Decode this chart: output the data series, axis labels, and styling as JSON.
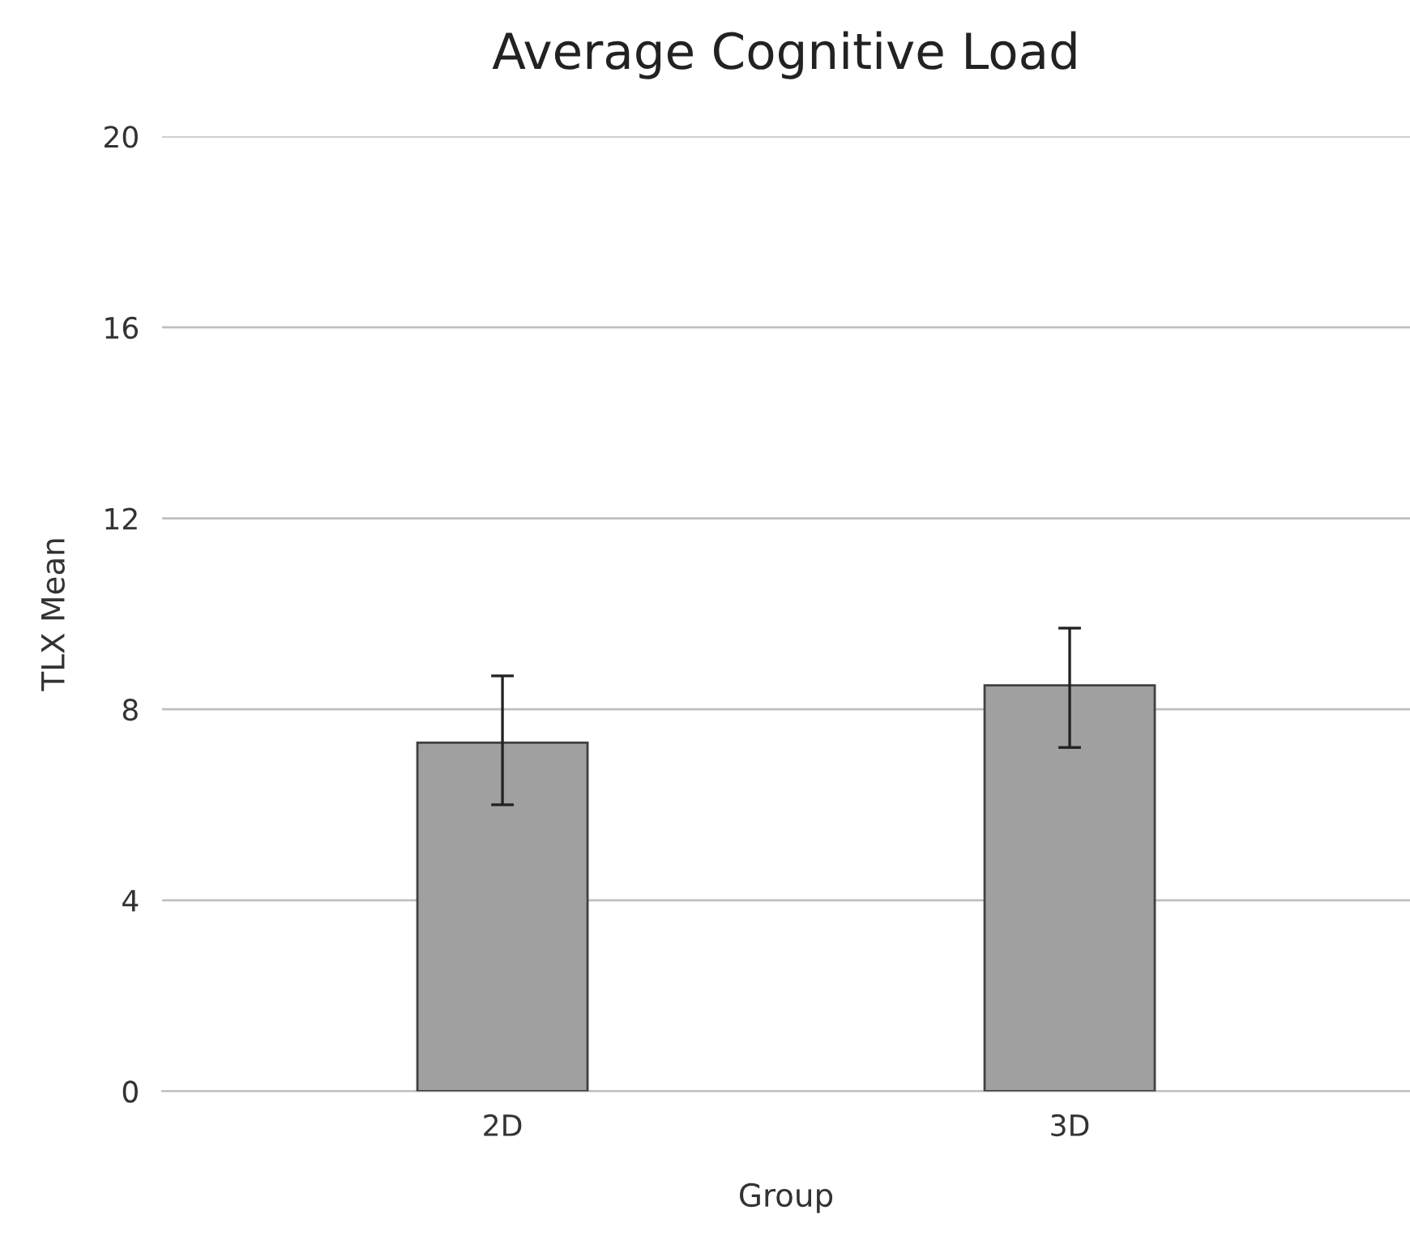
{
  "chart_data": {
    "type": "bar",
    "title": "Average Cognitive Load",
    "xlabel": "Group",
    "ylabel": "TLX Mean",
    "categories": [
      "2D",
      "3D"
    ],
    "values": [
      7.3,
      8.5
    ],
    "errors": [
      [
        6.0,
        8.7
      ],
      [
        7.2,
        9.7
      ]
    ],
    "color": "#a0a0a0",
    "ylim": [
      0,
      20
    ],
    "yticks": [
      0,
      4,
      8,
      12,
      16,
      20
    ],
    "grid": "y",
    "legend": false
  }
}
